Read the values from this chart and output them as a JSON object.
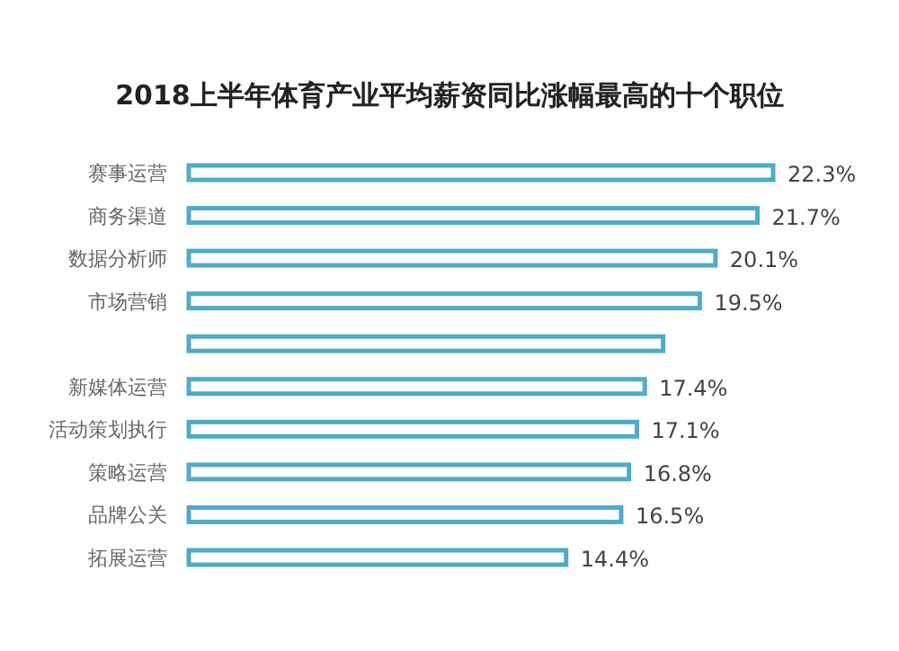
{
  "chart_data": {
    "type": "bar",
    "orientation": "horizontal",
    "title": "2018上半年体育产业平均薪资同比涨幅最高的十个职位",
    "categories": [
      "赛事运营",
      "商务渠道",
      "数据分析师",
      "市场营销",
      null,
      "新媒体运营",
      "活动策划执行",
      "策略运营",
      "品牌公关",
      "拓展运营"
    ],
    "values": [
      22.3,
      21.7,
      20.1,
      19.5,
      18.1,
      17.4,
      17.1,
      16.8,
      16.5,
      14.4
    ],
    "value_labels": [
      "22.3%",
      "21.7%",
      "20.1%",
      "19.5%",
      null,
      "17.4%",
      "17.1%",
      "16.8%",
      "16.5%",
      "14.4%"
    ],
    "color": "#4fabc9"
  }
}
